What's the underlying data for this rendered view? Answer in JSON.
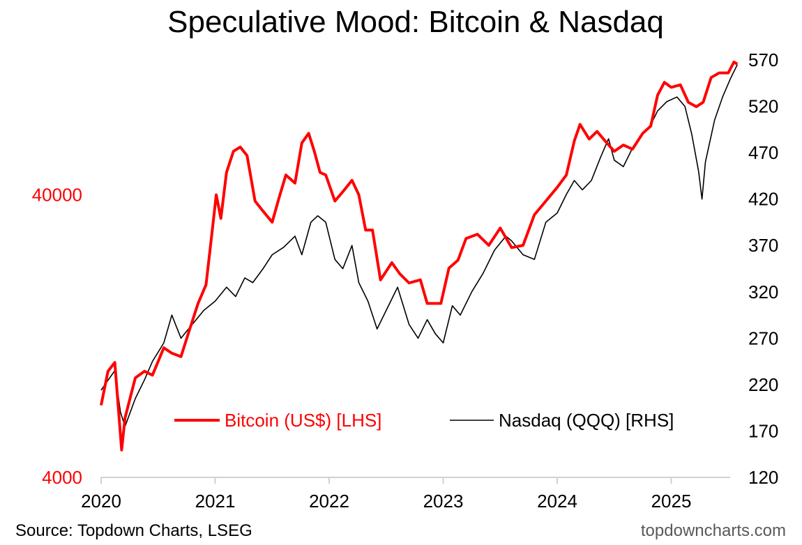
{
  "chart_data": {
    "type": "line",
    "title": "Speculative Mood: Bitcoin & Nasdaq",
    "x_ticks": [
      "2020",
      "2021",
      "2022",
      "2023",
      "2024",
      "2025"
    ],
    "x_range": [
      2020.0,
      2025.6
    ],
    "left_axis": {
      "scale": "log",
      "range": [
        4000,
        120000
      ],
      "ticks": [
        "4000",
        "40000"
      ],
      "color": "#ff0000"
    },
    "right_axis": {
      "scale": "linear",
      "range": [
        120,
        570
      ],
      "ticks": [
        "570",
        "520",
        "470",
        "420",
        "370",
        "320",
        "270",
        "220",
        "170",
        "120"
      ],
      "color": "#000000"
    },
    "series": [
      {
        "name": "Bitcoin (US$) [LHS]",
        "axis": "left",
        "color": "#ff0000",
        "points": [
          [
            2020.0,
            7200
          ],
          [
            2020.06,
            9500
          ],
          [
            2020.12,
            10200
          ],
          [
            2020.18,
            5000
          ],
          [
            2020.21,
            6500
          ],
          [
            2020.3,
            9000
          ],
          [
            2020.38,
            9500
          ],
          [
            2020.45,
            9200
          ],
          [
            2020.55,
            11500
          ],
          [
            2020.62,
            11000
          ],
          [
            2020.7,
            10700
          ],
          [
            2020.78,
            13500
          ],
          [
            2020.85,
            16500
          ],
          [
            2020.92,
            19200
          ],
          [
            2020.97,
            28800
          ],
          [
            2021.01,
            40000
          ],
          [
            2021.05,
            33000
          ],
          [
            2021.1,
            48000
          ],
          [
            2021.16,
            57000
          ],
          [
            2021.22,
            59000
          ],
          [
            2021.28,
            55000
          ],
          [
            2021.35,
            38000
          ],
          [
            2021.42,
            35000
          ],
          [
            2021.5,
            32000
          ],
          [
            2021.56,
            39000
          ],
          [
            2021.62,
            47000
          ],
          [
            2021.7,
            44000
          ],
          [
            2021.76,
            61000
          ],
          [
            2021.82,
            66000
          ],
          [
            2021.87,
            57000
          ],
          [
            2021.92,
            48000
          ],
          [
            2021.97,
            47000
          ],
          [
            2022.05,
            38000
          ],
          [
            2022.12,
            41000
          ],
          [
            2022.2,
            45000
          ],
          [
            2022.26,
            40000
          ],
          [
            2022.32,
            30000
          ],
          [
            2022.38,
            30000
          ],
          [
            2022.45,
            20000
          ],
          [
            2022.55,
            23000
          ],
          [
            2022.62,
            21000
          ],
          [
            2022.7,
            19500
          ],
          [
            2022.8,
            20000
          ],
          [
            2022.86,
            16500
          ],
          [
            2022.98,
            16500
          ],
          [
            2023.05,
            22000
          ],
          [
            2023.13,
            23500
          ],
          [
            2023.2,
            28000
          ],
          [
            2023.3,
            29000
          ],
          [
            2023.4,
            26500
          ],
          [
            2023.5,
            30500
          ],
          [
            2023.6,
            26000
          ],
          [
            2023.7,
            26500
          ],
          [
            2023.8,
            34000
          ],
          [
            2023.9,
            38000
          ],
          [
            2024.0,
            42500
          ],
          [
            2024.08,
            47000
          ],
          [
            2024.15,
            62000
          ],
          [
            2024.2,
            71000
          ],
          [
            2024.28,
            63000
          ],
          [
            2024.35,
            67000
          ],
          [
            2024.42,
            62000
          ],
          [
            2024.5,
            57000
          ],
          [
            2024.58,
            60000
          ],
          [
            2024.66,
            58000
          ],
          [
            2024.75,
            66000
          ],
          [
            2024.82,
            70000
          ],
          [
            2024.88,
            90000
          ],
          [
            2024.94,
            100000
          ],
          [
            2025.0,
            96000
          ],
          [
            2025.08,
            98000
          ],
          [
            2025.15,
            85000
          ],
          [
            2025.22,
            82000
          ],
          [
            2025.28,
            85000
          ],
          [
            2025.35,
            104000
          ],
          [
            2025.42,
            108000
          ],
          [
            2025.5,
            108000
          ],
          [
            2025.55,
            118000
          ],
          [
            2025.58,
            116000
          ]
        ]
      },
      {
        "name": "Nasdaq (QQQ) [RHS]",
        "axis": "right",
        "color": "#000000",
        "points": [
          [
            2020.0,
            214
          ],
          [
            2020.05,
            223
          ],
          [
            2020.12,
            235
          ],
          [
            2020.17,
            190
          ],
          [
            2020.21,
            175
          ],
          [
            2020.3,
            205
          ],
          [
            2020.38,
            225
          ],
          [
            2020.45,
            245
          ],
          [
            2020.55,
            265
          ],
          [
            2020.62,
            295
          ],
          [
            2020.7,
            270
          ],
          [
            2020.8,
            285
          ],
          [
            2020.9,
            300
          ],
          [
            2021.0,
            310
          ],
          [
            2021.1,
            325
          ],
          [
            2021.18,
            315
          ],
          [
            2021.26,
            335
          ],
          [
            2021.33,
            330
          ],
          [
            2021.42,
            345
          ],
          [
            2021.5,
            360
          ],
          [
            2021.6,
            368
          ],
          [
            2021.7,
            380
          ],
          [
            2021.76,
            360
          ],
          [
            2021.84,
            395
          ],
          [
            2021.9,
            402
          ],
          [
            2021.97,
            395
          ],
          [
            2022.05,
            355
          ],
          [
            2022.12,
            345
          ],
          [
            2022.2,
            370
          ],
          [
            2022.26,
            330
          ],
          [
            2022.34,
            310
          ],
          [
            2022.42,
            280
          ],
          [
            2022.5,
            300
          ],
          [
            2022.6,
            325
          ],
          [
            2022.7,
            285
          ],
          [
            2022.78,
            270
          ],
          [
            2022.86,
            290
          ],
          [
            2022.93,
            275
          ],
          [
            2023.0,
            265
          ],
          [
            2023.08,
            305
          ],
          [
            2023.15,
            295
          ],
          [
            2023.25,
            320
          ],
          [
            2023.35,
            340
          ],
          [
            2023.45,
            365
          ],
          [
            2023.55,
            380
          ],
          [
            2023.6,
            375
          ],
          [
            2023.7,
            360
          ],
          [
            2023.8,
            355
          ],
          [
            2023.9,
            395
          ],
          [
            2024.0,
            405
          ],
          [
            2024.08,
            425
          ],
          [
            2024.15,
            440
          ],
          [
            2024.22,
            430
          ],
          [
            2024.3,
            440
          ],
          [
            2024.38,
            465
          ],
          [
            2024.45,
            485
          ],
          [
            2024.5,
            462
          ],
          [
            2024.58,
            455
          ],
          [
            2024.66,
            475
          ],
          [
            2024.75,
            490
          ],
          [
            2024.82,
            500
          ],
          [
            2024.88,
            515
          ],
          [
            2024.96,
            525
          ],
          [
            2025.05,
            530
          ],
          [
            2025.12,
            520
          ],
          [
            2025.18,
            490
          ],
          [
            2025.24,
            450
          ],
          [
            2025.27,
            420
          ],
          [
            2025.3,
            460
          ],
          [
            2025.38,
            505
          ],
          [
            2025.45,
            530
          ],
          [
            2025.52,
            550
          ],
          [
            2025.58,
            565
          ]
        ]
      }
    ]
  },
  "footer": {
    "source": "Source: Topdown Charts, LSEG",
    "brand": "topdowncharts.com"
  }
}
